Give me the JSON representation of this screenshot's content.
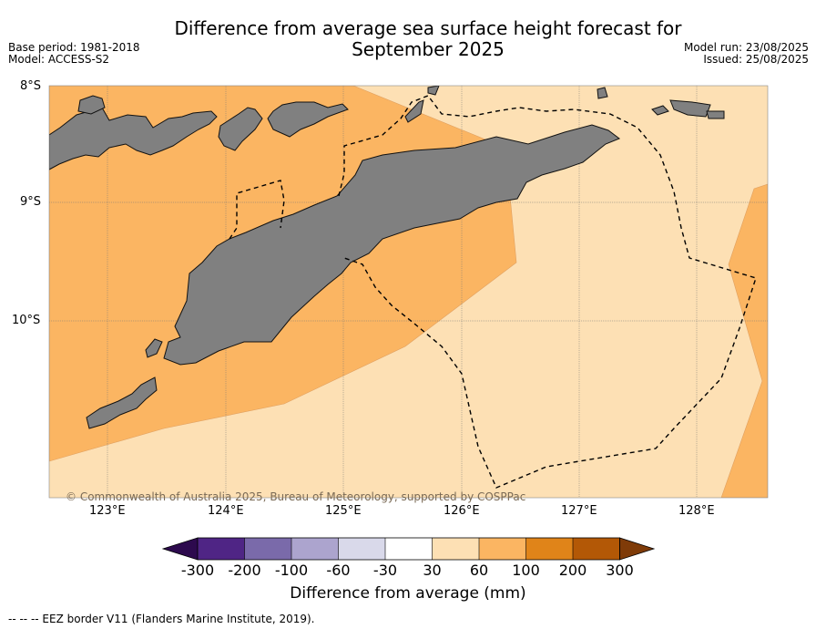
{
  "title_line1": "Difference from average sea surface height forecast for",
  "title_line2": "September 2025",
  "base_period": "Base period: 1981-2018",
  "model": "Model: ACCESS-S2",
  "model_run": "Model run: 23/08/2025",
  "issued": "Issued: 25/08/2025",
  "latitudes": [
    "8°S",
    "9°S",
    "10°S"
  ],
  "longitudes": [
    "123°E",
    "124°E",
    "125°E",
    "126°E",
    "127°E",
    "128°E"
  ],
  "copyright": "© Commonwealth of Australia 2025, Bureau of Meteorology, supported by COSPPac",
  "colorbar": {
    "ticks": [
      "-300",
      "-200",
      "-100",
      "-60",
      "-30",
      "30",
      "60",
      "100",
      "200",
      "300"
    ],
    "colors": [
      "#2d0a4e",
      "#4f2585",
      "#7a6aaa",
      "#aca4ce",
      "#d9d9ea",
      "#ffffff",
      "#fde0b4",
      "#fbb562",
      "#e08419",
      "#b35806",
      "#7f3b08"
    ],
    "label": "Difference from average (mm)"
  },
  "legend_note": "--  --  -- EEZ border V11 (Flanders Marine Institute, 2019).",
  "map_colors": {
    "light": "#fde0b4",
    "medium": "#fbb562",
    "land": "#808080"
  }
}
